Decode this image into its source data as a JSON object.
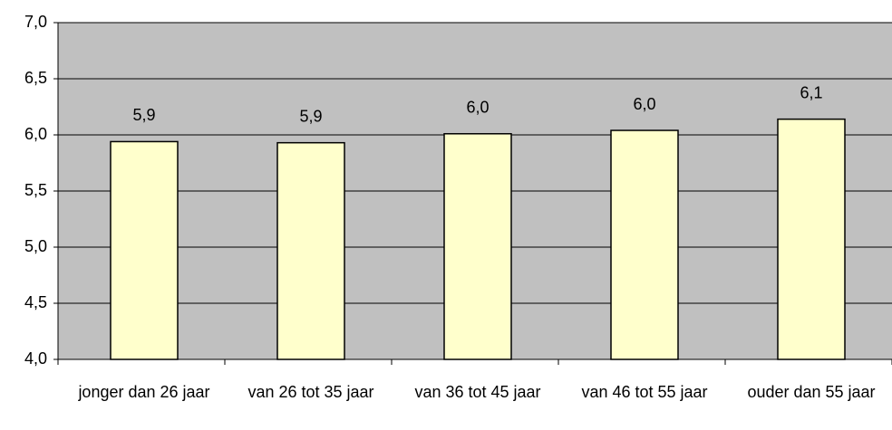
{
  "chart_data": {
    "type": "bar",
    "categories": [
      "jonger dan 26 jaar",
      "van 26 tot 35 jaar",
      "van 36 tot 45 jaar",
      "van 46 tot 55 jaar",
      "ouder dan 55 jaar"
    ],
    "values": [
      5.94,
      5.93,
      6.01,
      6.04,
      6.14
    ],
    "value_labels": [
      "5,9",
      "5,9",
      "6,0",
      "6,0",
      "6,1"
    ],
    "color": "#ffffcc",
    "background": "#c0c0c0",
    "ylim": [
      4.0,
      7.0
    ],
    "yticks": [
      {
        "value": 4.0,
        "label": "4,0"
      },
      {
        "value": 4.5,
        "label": "4,5"
      },
      {
        "value": 5.0,
        "label": "5,0"
      },
      {
        "value": 5.5,
        "label": "5,5"
      },
      {
        "value": 6.0,
        "label": "6,0"
      },
      {
        "value": 6.5,
        "label": "6,5"
      },
      {
        "value": 7.0,
        "label": "7,0"
      }
    ],
    "grid": true
  }
}
